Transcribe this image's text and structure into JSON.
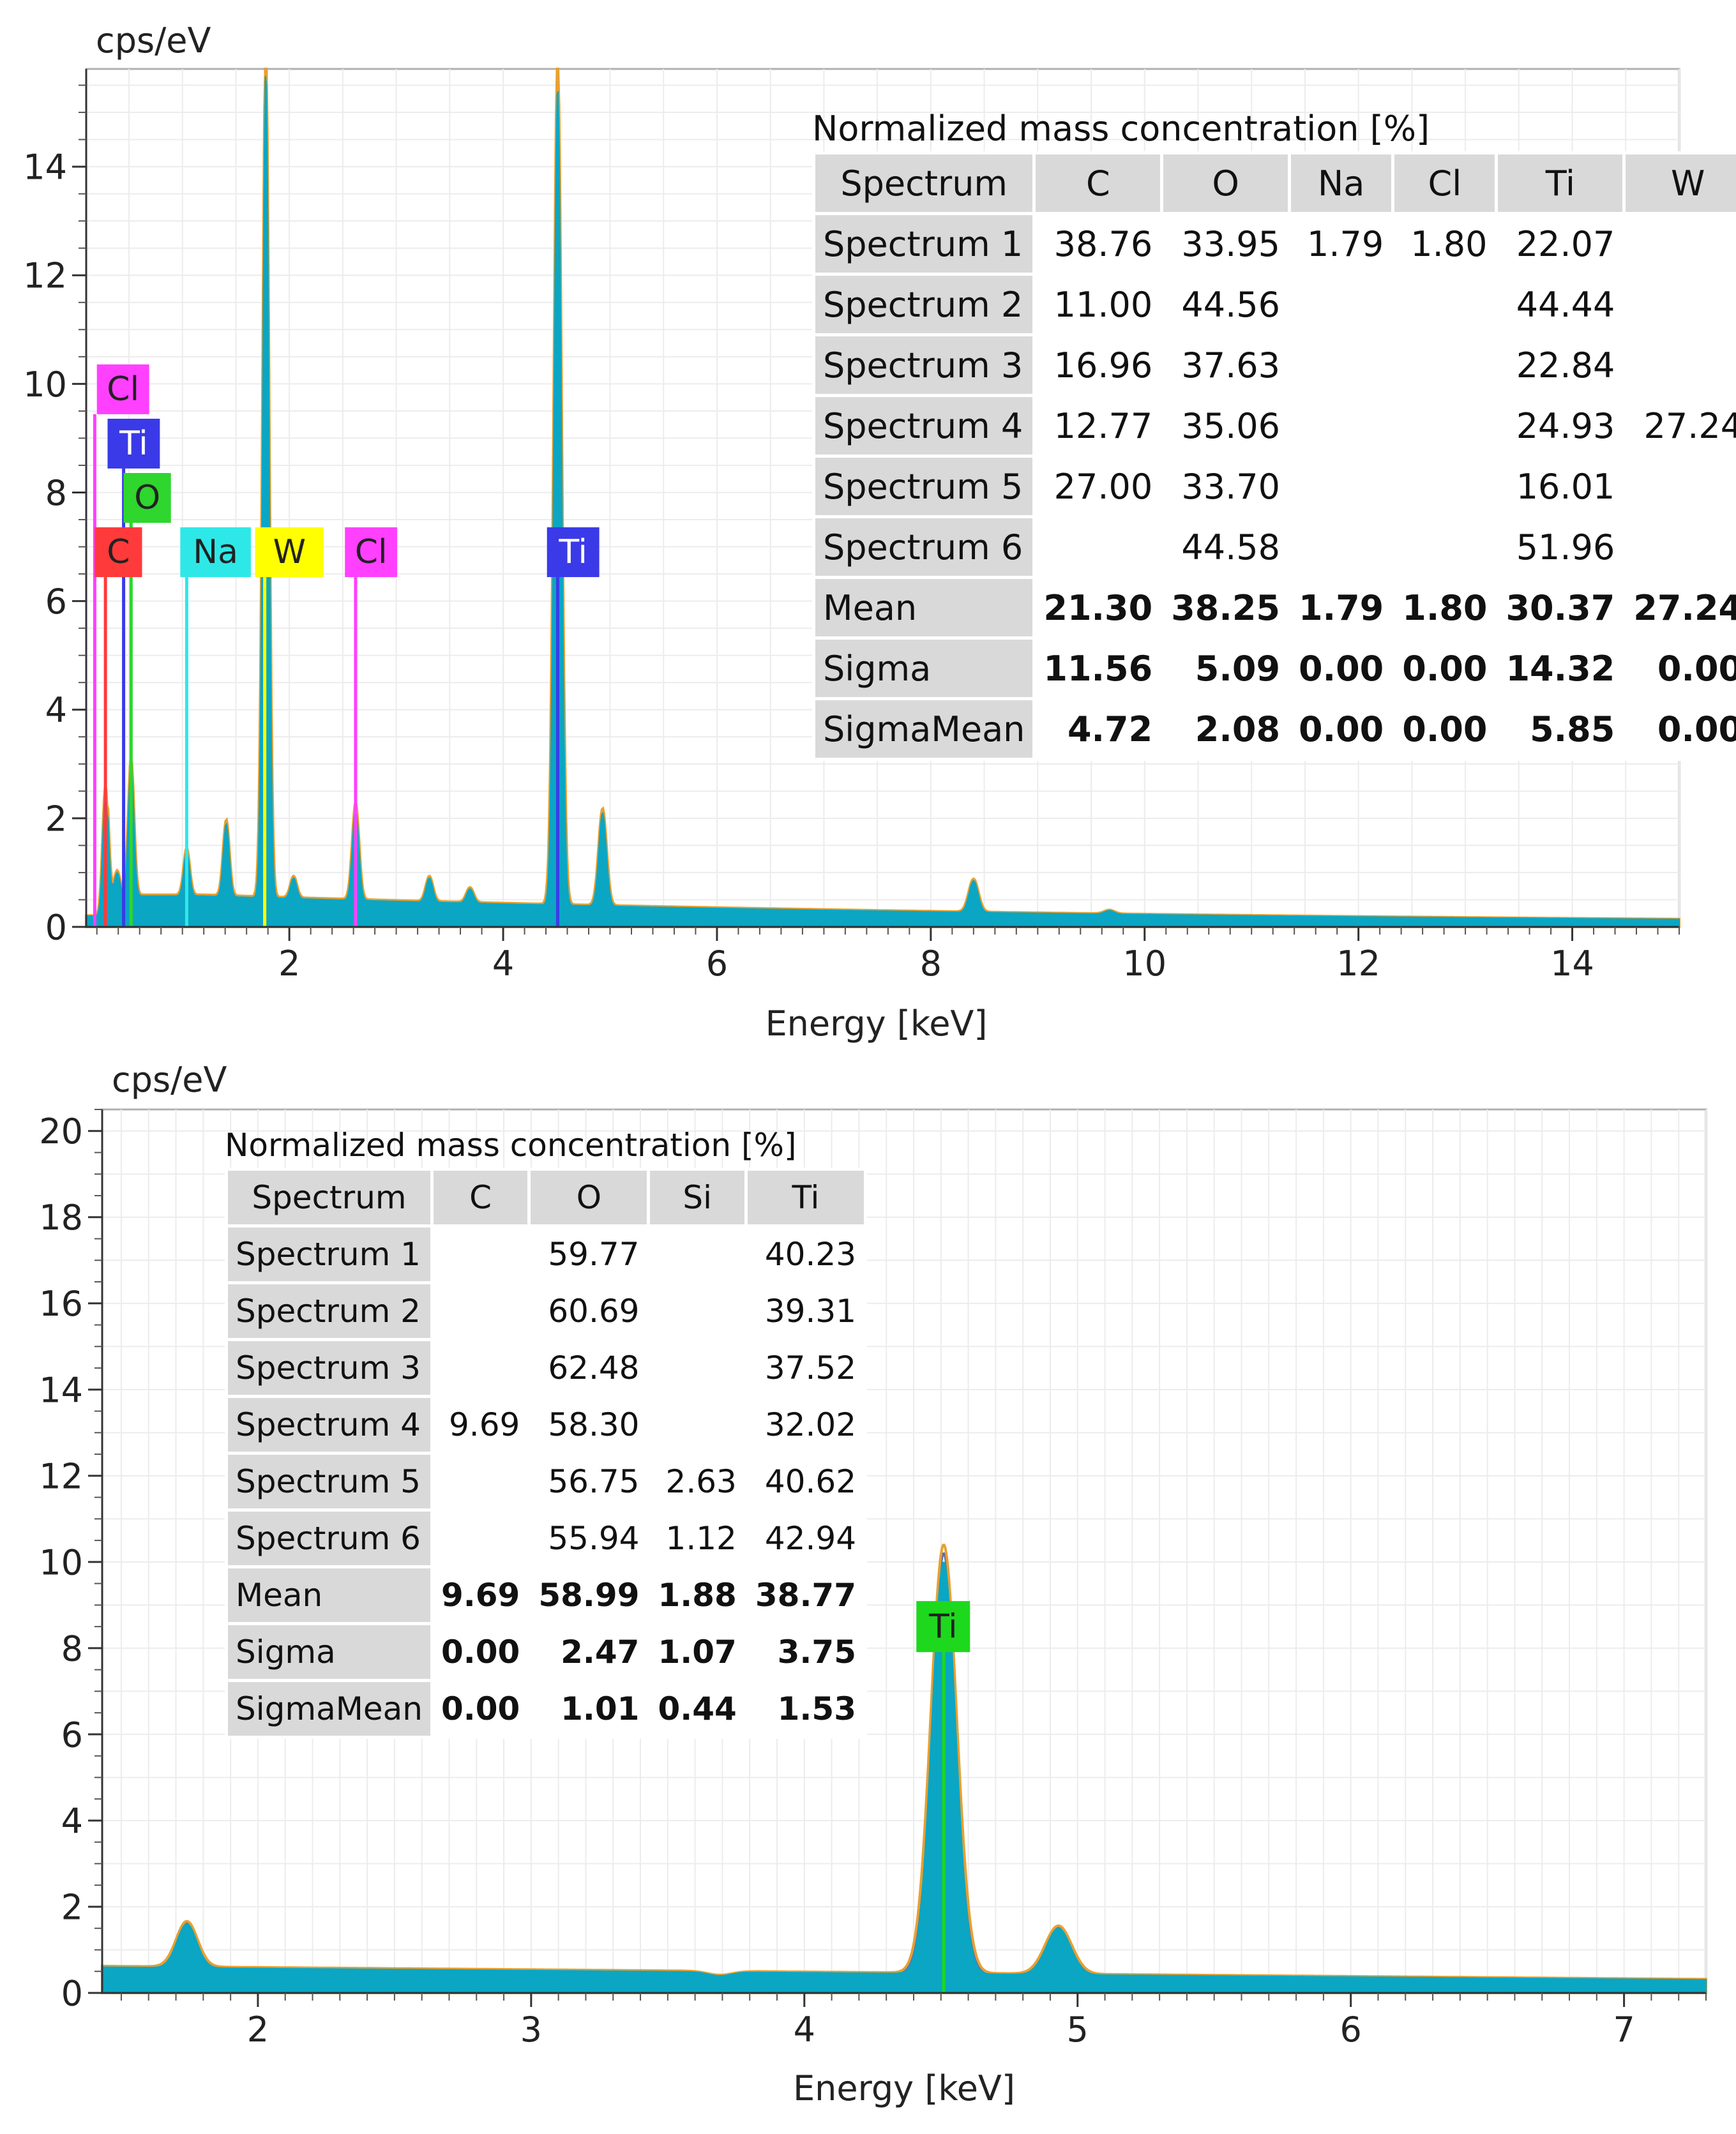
{
  "chart_data": [
    {
      "type": "line",
      "title": "",
      "ylabel": "cps/eV",
      "xlabel": "Energy [keV]",
      "xlim": [
        0.1,
        15
      ],
      "ylim": [
        0,
        15.8
      ],
      "xticks": [
        2,
        4,
        6,
        8,
        10,
        12,
        14
      ],
      "yticks": [
        0,
        2,
        4,
        6,
        8,
        10,
        12,
        14
      ],
      "grid": true,
      "series_colors": [
        "#0aa6c4",
        "#e8a030",
        "#5a6fb0",
        "#6a9a30",
        "#888888"
      ],
      "peaks": [
        {
          "x": 0.28,
          "y": 2.5
        },
        {
          "x": 0.39,
          "y": 1.0
        },
        {
          "x": 0.52,
          "y": 3.0
        },
        {
          "x": 1.04,
          "y": 1.4
        },
        {
          "x": 1.41,
          "y": 1.9
        },
        {
          "x": 1.78,
          "y": 15.8
        },
        {
          "x": 2.04,
          "y": 0.9
        },
        {
          "x": 2.62,
          "y": 2.2
        },
        {
          "x": 3.31,
          "y": 0.9
        },
        {
          "x": 3.69,
          "y": 0.7
        },
        {
          "x": 4.51,
          "y": 15.5
        },
        {
          "x": 4.93,
          "y": 2.1
        },
        {
          "x": 8.4,
          "y": 0.85
        },
        {
          "x": 9.67,
          "y": 0.3
        }
      ],
      "element_labels": [
        {
          "text": "Cl",
          "x": 0.2,
          "y": 9.9,
          "line_x": 0.18,
          "color": "#ff40ff"
        },
        {
          "text": "Ti",
          "x": 0.3,
          "y": 8.9,
          "line_x": 0.45,
          "color": "#3a3ae8"
        },
        {
          "text": "O",
          "x": 0.45,
          "y": 7.9,
          "line_x": 0.52,
          "color": "#2ed62e"
        },
        {
          "text": "C",
          "x": 0.18,
          "y": 6.9,
          "line_x": 0.28,
          "color": "#ff3a3a"
        },
        {
          "text": "Na",
          "x": 0.98,
          "y": 6.9,
          "line_x": 1.04,
          "color": "#2ee8e8"
        },
        {
          "text": "W",
          "x": 1.68,
          "y": 6.9,
          "line_x": 1.77,
          "color": "#ffff00"
        },
        {
          "text": "Cl",
          "x": 2.52,
          "y": 6.9,
          "line_x": 2.62,
          "color": "#ff40ff"
        },
        {
          "text": "Ti",
          "x": 4.41,
          "y": 6.9,
          "line_x": 4.51,
          "color": "#3a3ae8"
        }
      ],
      "table": {
        "caption": "Normalized mass concentration [%]",
        "columns": [
          "Spectrum",
          "C",
          "O",
          "Na",
          "Cl",
          "Ti",
          "W"
        ],
        "rows": [
          [
            "Spectrum 1",
            "38.76",
            "33.95",
            "1.79",
            "1.80",
            "22.07",
            ""
          ],
          [
            "Spectrum 2",
            "11.00",
            "44.56",
            "",
            "",
            "44.44",
            ""
          ],
          [
            "Spectrum 3",
            "16.96",
            "37.63",
            "",
            "",
            "22.84",
            ""
          ],
          [
            "Spectrum 4",
            "12.77",
            "35.06",
            "",
            "",
            "24.93",
            "27.24"
          ],
          [
            "Spectrum 5",
            "27.00",
            "33.70",
            "",
            "",
            "16.01",
            ""
          ],
          [
            "Spectrum 6",
            "",
            "44.58",
            "",
            "",
            "51.96",
            ""
          ]
        ],
        "summary": [
          [
            "Mean",
            "21.30",
            "38.25",
            "1.79",
            "1.80",
            "30.37",
            "27.24"
          ],
          [
            "Sigma",
            "11.56",
            "5.09",
            "0.00",
            "0.00",
            "14.32",
            "0.00"
          ],
          [
            "SigmaMean",
            "4.72",
            "2.08",
            "0.00",
            "0.00",
            "5.85",
            "0.00"
          ]
        ]
      }
    },
    {
      "type": "line",
      "title": "",
      "ylabel": "cps/eV",
      "xlabel": "Energy [keV]",
      "xlim": [
        1.43,
        7.3
      ],
      "ylim": [
        0,
        20.5
      ],
      "xticks": [
        2,
        3,
        4,
        5,
        6,
        7
      ],
      "yticks": [
        0,
        2,
        4,
        6,
        8,
        10,
        12,
        14,
        16,
        18,
        20
      ],
      "grid": true,
      "series_colors": [
        "#0aa6c4",
        "#e8a030",
        "#5a6fb0"
      ],
      "peaks": [
        {
          "x": 1.74,
          "y": 1.6
        },
        {
          "x": 3.69,
          "y": 0.4
        },
        {
          "x": 4.51,
          "y": 10.0
        },
        {
          "x": 4.93,
          "y": 1.5
        }
      ],
      "element_labels": [
        {
          "text": "Ti",
          "x": 4.41,
          "y": 8.5,
          "line_x": 4.51,
          "color": "#1ed81e"
        }
      ],
      "table": {
        "caption": "Normalized mass concentration [%]",
        "columns": [
          "Spectrum",
          "C",
          "O",
          "Si",
          "Ti"
        ],
        "rows": [
          [
            "Spectrum 1",
            "",
            "59.77",
            "",
            "40.23"
          ],
          [
            "Spectrum 2",
            "",
            "60.69",
            "",
            "39.31"
          ],
          [
            "Spectrum 3",
            "",
            "62.48",
            "",
            "37.52"
          ],
          [
            "Spectrum 4",
            "9.69",
            "58.30",
            "",
            "32.02"
          ],
          [
            "Spectrum 5",
            "",
            "56.75",
            "2.63",
            "40.62"
          ],
          [
            "Spectrum 6",
            "",
            "55.94",
            "1.12",
            "42.94"
          ]
        ],
        "summary": [
          [
            "Mean",
            "9.69",
            "58.99",
            "1.88",
            "38.77"
          ],
          [
            "Sigma",
            "0.00",
            "2.47",
            "1.07",
            "3.75"
          ],
          [
            "SigmaMean",
            "0.00",
            "1.01",
            "0.44",
            "1.53"
          ]
        ]
      }
    }
  ]
}
